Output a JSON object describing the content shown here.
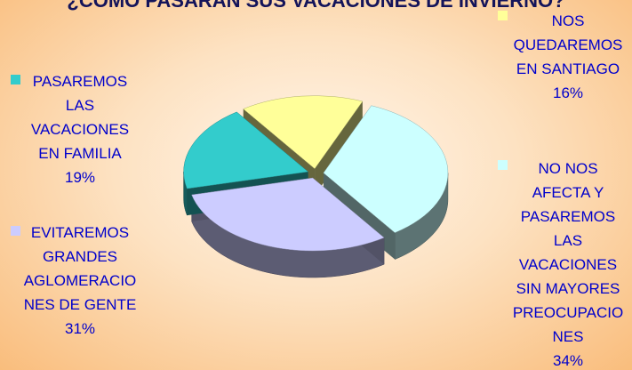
{
  "chart_data": {
    "type": "pie3d",
    "title": "¿CÓMO PASARÁN SUS VACACIONES DE INVIERNO?",
    "categories": [
      "NOS QUEDAREMOS EN SANTIAGO",
      "NO NOS AFECTA Y PASAREMOS LAS VACACIONES SIN MAYORES PREOCUPACIONES",
      "EVITAREMOS GRANDES AGLOMERACIONES DE GENTE",
      "PASAREMOS LAS VACACIONES EN FAMILIA"
    ],
    "values": [
      16,
      34,
      31,
      19
    ],
    "value_labels": [
      "16%",
      "34%",
      "31%",
      "19%"
    ],
    "colors": [
      "#ffff99",
      "#ccffff",
      "#ccccff",
      "#33cccc"
    ]
  }
}
